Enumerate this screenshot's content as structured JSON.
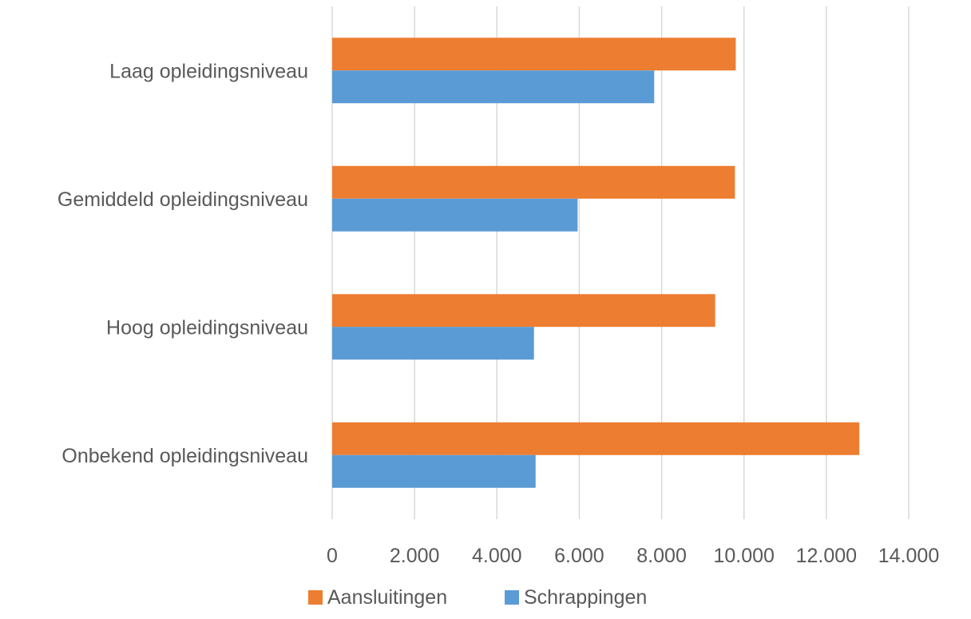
{
  "chart_data": {
    "type": "bar",
    "orientation": "horizontal",
    "categories": [
      "Laag opleidingsniveau",
      "Gemiddeld opleidingsniveau",
      "Hoog opleidingsniveau",
      "Onbekend opleidingsniveau"
    ],
    "series": [
      {
        "name": "Aansluitingen",
        "color": "#ed7d31",
        "values": [
          9800,
          9780,
          9300,
          12800
        ]
      },
      {
        "name": "Schrappingen",
        "color": "#5b9bd5",
        "values": [
          7820,
          5960,
          4900,
          4940
        ]
      }
    ],
    "xlim": [
      0,
      14000
    ],
    "xticks": [
      0,
      2000,
      4000,
      6000,
      8000,
      10000,
      12000,
      14000
    ],
    "xtick_labels": [
      "0",
      "2.000",
      "4.000",
      "6.000",
      "8.000",
      "10.000",
      "12.000",
      "14.000"
    ],
    "grid": true,
    "legend_position": "bottom"
  }
}
